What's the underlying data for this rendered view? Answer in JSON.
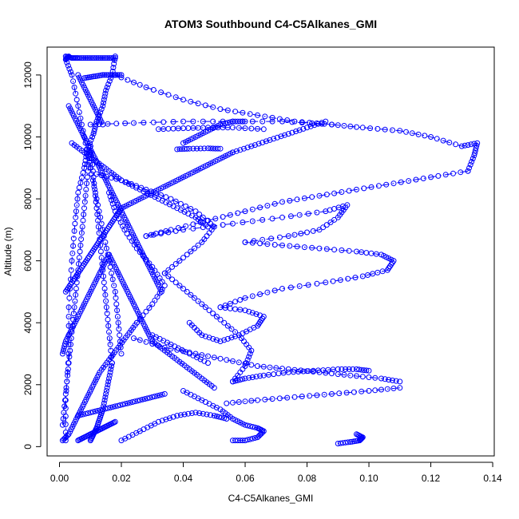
{
  "chart_data": {
    "type": "scatter",
    "title": "ATOM3 Southbound C4-C5Alkanes_GMI",
    "xlabel": "C4-C5Alkanes_GMI",
    "ylabel": "Altitude (m)",
    "xlim": [
      -0.004,
      0.1405
    ],
    "ylim": [
      -300,
      12900
    ],
    "x_ticks": [
      0.0,
      0.02,
      0.04,
      0.06,
      0.08,
      0.1,
      0.12,
      0.14
    ],
    "x_tick_labels": [
      "0.00",
      "0.02",
      "0.04",
      "0.06",
      "0.08",
      "0.10",
      "0.12",
      "0.14"
    ],
    "y_ticks": [
      0,
      2000,
      4000,
      6000,
      8000,
      10000,
      12000
    ],
    "y_tick_labels": [
      "0",
      "2000",
      "4000",
      "6000",
      "8000",
      "10000",
      "12000"
    ],
    "grid": false,
    "legend": "none",
    "series_color": "#0000ff",
    "marker": "open-circle",
    "line_style": "dash-dot",
    "series": [
      {
        "x": [
          0.002,
          0.002,
          0.003,
          0.003,
          0.004,
          0.005,
          0.006,
          0.008,
          0.009,
          0.011,
          0.012,
          0.014,
          0.015,
          0.017,
          0.018
        ],
        "y": [
          200,
          1500,
          3000,
          4500,
          6000,
          7200,
          8200,
          9000,
          9600,
          10100,
          10500,
          11000,
          11500,
          12000,
          12600
        ]
      },
      {
        "x": [
          0.003,
          0.002,
          0.004,
          0.006,
          0.008,
          0.01,
          0.012,
          0.014,
          0.016,
          0.018,
          0.019,
          0.02
        ],
        "y": [
          12600,
          12500,
          12000,
          11000,
          10000,
          9000,
          8000,
          7000,
          6000,
          5000,
          4000,
          3000
        ]
      },
      {
        "x": [
          0.002,
          0.004,
          0.006,
          0.009,
          0.012,
          0.015,
          0.018
        ],
        "y": [
          12600,
          12550,
          12550,
          12550,
          12550,
          12550,
          12550
        ]
      },
      {
        "x": [
          0.008,
          0.011,
          0.014,
          0.017,
          0.02
        ],
        "y": [
          11900,
          11950,
          12000,
          12000,
          12000
        ]
      },
      {
        "x": [
          0.01,
          0.024,
          0.04,
          0.056,
          0.072,
          0.088
        ],
        "y": [
          10400,
          10450,
          10500,
          10500,
          10500,
          10400
        ]
      },
      {
        "x": [
          0.032,
          0.04,
          0.048,
          0.056,
          0.066
        ],
        "y": [
          10250,
          10280,
          10300,
          10300,
          10250
        ]
      },
      {
        "x": [
          0.038,
          0.042,
          0.048,
          0.052
        ],
        "y": [
          9600,
          9620,
          9630,
          9620
        ]
      },
      {
        "x": [
          0.018,
          0.028,
          0.04,
          0.052,
          0.064,
          0.076,
          0.088,
          0.098,
          0.11,
          0.12,
          0.13,
          0.135,
          0.134,
          0.132
        ],
        "y": [
          12000,
          11600,
          11200,
          10900,
          10700,
          10500,
          10400,
          10300,
          10200,
          10000,
          9700,
          9800,
          9400,
          8900
        ]
      },
      {
        "x": [
          0.132,
          0.12,
          0.108,
          0.096,
          0.084,
          0.072,
          0.06,
          0.048,
          0.036,
          0.028
        ],
        "y": [
          8900,
          8700,
          8500,
          8300,
          8100,
          7900,
          7600,
          7300,
          7000,
          6800
        ]
      },
      {
        "x": [
          0.028,
          0.04,
          0.056,
          0.072,
          0.086,
          0.093,
          0.09,
          0.084,
          0.074,
          0.06
        ],
        "y": [
          6800,
          7000,
          7200,
          7400,
          7600,
          7800,
          7400,
          7000,
          6800,
          6600
        ]
      },
      {
        "x": [
          0.06,
          0.072,
          0.084,
          0.096,
          0.104,
          0.108,
          0.106,
          0.098,
          0.086,
          0.072,
          0.06,
          0.052
        ],
        "y": [
          6600,
          6500,
          6400,
          6300,
          6200,
          6000,
          5700,
          5500,
          5300,
          5100,
          4800,
          4500
        ]
      },
      {
        "x": [
          0.052,
          0.06,
          0.066,
          0.064,
          0.058,
          0.052,
          0.046,
          0.042
        ],
        "y": [
          4500,
          4400,
          4200,
          3900,
          3600,
          3400,
          3600,
          4000
        ]
      },
      {
        "x": [
          0.024,
          0.034,
          0.044,
          0.054,
          0.064,
          0.074,
          0.084,
          0.094,
          0.104,
          0.11
        ],
        "y": [
          3500,
          3200,
          3000,
          2800,
          2600,
          2500,
          2400,
          2300,
          2200,
          2100
        ]
      },
      {
        "x": [
          0.11,
          0.1,
          0.088,
          0.076,
          0.064,
          0.054
        ],
        "y": [
          1900,
          1800,
          1700,
          1600,
          1500,
          1400
        ]
      },
      {
        "x": [
          0.04,
          0.046,
          0.052,
          0.056,
          0.06,
          0.064,
          0.066,
          0.064,
          0.06,
          0.056
        ],
        "y": [
          1800,
          1500,
          1200,
          900,
          700,
          600,
          500,
          300,
          200,
          200
        ]
      },
      {
        "x": [
          0.096,
          0.098,
          0.097,
          0.094,
          0.09
        ],
        "y": [
          400,
          300,
          200,
          150,
          100
        ]
      },
      {
        "x": [
          0.001,
          0.003,
          0.005,
          0.007,
          0.009,
          0.011,
          0.013,
          0.016,
          0.019,
          0.022,
          0.025
        ],
        "y": [
          200,
          400,
          800,
          1200,
          1600,
          2000,
          2400,
          2800,
          3200,
          3600,
          4000
        ]
      },
      {
        "x": [
          0.025,
          0.03,
          0.034,
          0.03,
          0.025,
          0.021,
          0.018,
          0.016
        ],
        "y": [
          4000,
          4600,
          5200,
          5800,
          6400,
          7000,
          7600,
          8200
        ]
      },
      {
        "x": [
          0.012,
          0.02,
          0.028,
          0.036,
          0.044,
          0.05,
          0.046,
          0.04,
          0.034
        ],
        "y": [
          8800,
          8600,
          8300,
          8000,
          7600,
          7100,
          6600,
          6100,
          5600
        ]
      },
      {
        "x": [
          0.034,
          0.04,
          0.046,
          0.052,
          0.058,
          0.062,
          0.06,
          0.056
        ],
        "y": [
          5600,
          5100,
          4600,
          4100,
          3600,
          3100,
          2600,
          2100
        ]
      },
      {
        "x": [
          0.056,
          0.06,
          0.066,
          0.074,
          0.082,
          0.09,
          0.096,
          0.1
        ],
        "y": [
          2100,
          2200,
          2300,
          2400,
          2450,
          2500,
          2500,
          2450
        ]
      },
      {
        "x": [
          0.004,
          0.008,
          0.012,
          0.016,
          0.02,
          0.026,
          0.032,
          0.038,
          0.044,
          0.048
        ],
        "y": [
          9800,
          9500,
          9200,
          8900,
          8600,
          8300,
          8000,
          7700,
          7400,
          7100
        ]
      },
      {
        "x": [
          0.002,
          0.004,
          0.006,
          0.008,
          0.01,
          0.012,
          0.014,
          0.016,
          0.018,
          0.02
        ],
        "y": [
          5000,
          5300,
          5600,
          5900,
          6200,
          6500,
          6800,
          7100,
          7400,
          7700
        ]
      },
      {
        "x": [
          0.02,
          0.024,
          0.028,
          0.032,
          0.036,
          0.04,
          0.044,
          0.048,
          0.052,
          0.056
        ],
        "y": [
          7700,
          7900,
          8100,
          8300,
          8500,
          8700,
          8900,
          9100,
          9300,
          9500
        ]
      },
      {
        "x": [
          0.056,
          0.062,
          0.068,
          0.074,
          0.08,
          0.086
        ],
        "y": [
          9500,
          9700,
          9900,
          10100,
          10300,
          10500
        ]
      },
      {
        "x": [
          0.001,
          0.002,
          0.004,
          0.006,
          0.008,
          0.01,
          0.012,
          0.014,
          0.016
        ],
        "y": [
          3000,
          3400,
          3800,
          4200,
          4600,
          5000,
          5400,
          5800,
          6200
        ]
      },
      {
        "x": [
          0.016,
          0.018,
          0.02,
          0.022,
          0.024,
          0.026,
          0.028,
          0.03
        ],
        "y": [
          6200,
          5800,
          5400,
          5000,
          4600,
          4200,
          3800,
          3400
        ]
      },
      {
        "x": [
          0.03,
          0.034,
          0.038,
          0.042,
          0.046,
          0.05
        ],
        "y": [
          3400,
          3100,
          2800,
          2500,
          2200,
          1900
        ]
      },
      {
        "x": [
          0.006,
          0.01,
          0.014,
          0.018,
          0.022,
          0.026,
          0.03,
          0.034
        ],
        "y": [
          1000,
          1100,
          1200,
          1300,
          1400,
          1500,
          1600,
          1700
        ]
      },
      {
        "x": [
          0.006,
          0.008,
          0.01,
          0.012,
          0.014,
          0.016,
          0.018
        ],
        "y": [
          200,
          300,
          400,
          500,
          600,
          700,
          800
        ]
      },
      {
        "x": [
          0.02,
          0.026,
          0.032,
          0.038,
          0.044,
          0.05,
          0.054
        ],
        "y": [
          200,
          500,
          800,
          1000,
          1100,
          1000,
          900
        ]
      },
      {
        "x": [
          0.003,
          0.005,
          0.007,
          0.009,
          0.011,
          0.013,
          0.015,
          0.017,
          0.019
        ],
        "y": [
          11000,
          10600,
          10200,
          9800,
          9400,
          9000,
          8600,
          8200,
          7800
        ]
      },
      {
        "x": [
          0.019,
          0.021,
          0.023,
          0.025,
          0.027,
          0.029,
          0.031,
          0.033
        ],
        "y": [
          7800,
          7400,
          7000,
          6600,
          6200,
          5800,
          5400,
          5000
        ]
      },
      {
        "x": [
          0.001,
          0.002,
          0.003,
          0.004,
          0.005,
          0.006,
          0.007,
          0.008,
          0.009,
          0.01
        ],
        "y": [
          700,
          1700,
          2700,
          3700,
          4700,
          5700,
          6700,
          7700,
          8700,
          9700
        ]
      },
      {
        "x": [
          0.01,
          0.011,
          0.012,
          0.013,
          0.014,
          0.015,
          0.016,
          0.017
        ],
        "y": [
          9700,
          8700,
          7700,
          6700,
          5700,
          4700,
          3700,
          2700
        ]
      },
      {
        "x": [
          0.017,
          0.016,
          0.015,
          0.014,
          0.013,
          0.012,
          0.011,
          0.01
        ],
        "y": [
          2700,
          2200,
          1700,
          1200,
          900,
          600,
          400,
          200
        ]
      },
      {
        "x": [
          0.006,
          0.008,
          0.01,
          0.012,
          0.014
        ],
        "y": [
          12000,
          11600,
          11200,
          10800,
          10400
        ]
      },
      {
        "x": [
          0.03,
          0.036,
          0.042,
          0.048
        ],
        "y": [
          3600,
          3300,
          3000,
          2700
        ]
      },
      {
        "x": [
          0.04,
          0.044,
          0.048,
          0.052,
          0.056,
          0.06
        ],
        "y": [
          9800,
          10000,
          10200,
          10400,
          10500,
          10500
        ]
      }
    ]
  }
}
